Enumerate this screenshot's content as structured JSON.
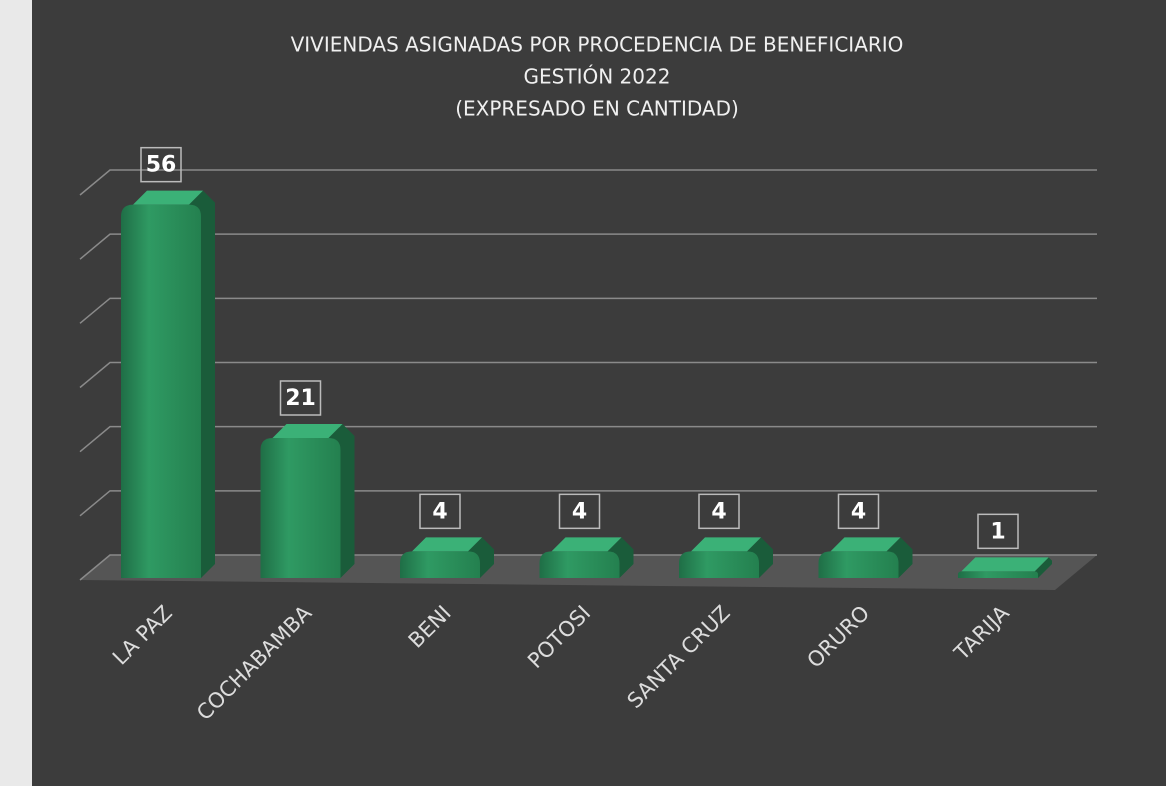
{
  "chart_data": {
    "type": "bar3d",
    "title": "VIVIENDAS ASIGNADAS POR PROCEDENCIA DE BENEFICIARIO",
    "subtitle": "GESTIÓN 2022",
    "unit_label": "(EXPRESADO EN CANTIDAD)",
    "categories": [
      "LA PAZ",
      "COCHABAMBA",
      "BENI",
      "POTOSI",
      "SANTA CRUZ",
      "ORURO",
      "TARIJA"
    ],
    "values": [
      56,
      21,
      4,
      4,
      4,
      4,
      1
    ],
    "color": "#2a8a5a",
    "ylim": [
      0,
      60
    ],
    "yticks": [
      0,
      10,
      20,
      30,
      40,
      50,
      60
    ],
    "grid": true
  }
}
